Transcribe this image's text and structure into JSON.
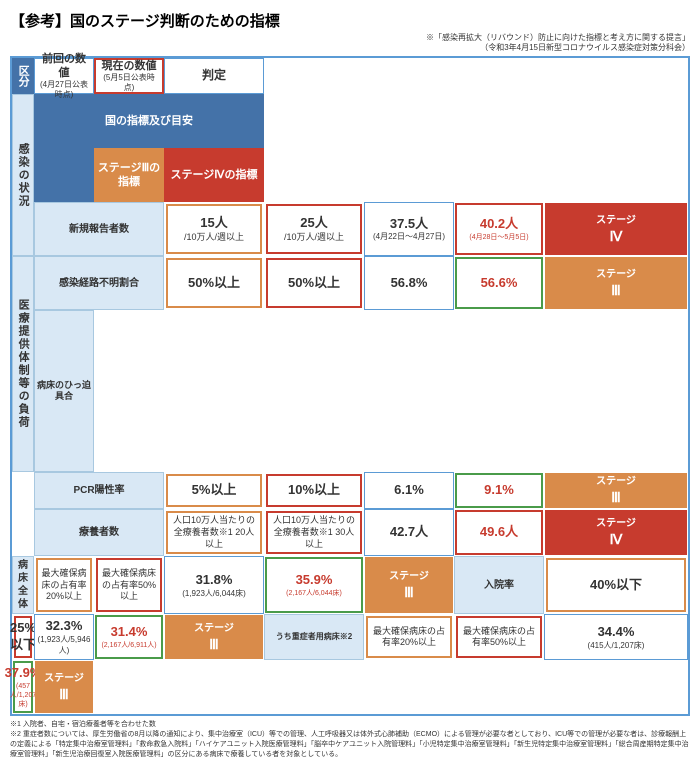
{
  "title": "【参考】国のステージ判断のための指標",
  "subtitle1": "※「感染再拡大（リバウンド）防止に向けた指標と考え方に関する提言」",
  "subtitle2": "（令和3年4月15日新型コロナウイルス感染症対策分科会）",
  "hdr": {
    "cat": "区分",
    "ind": "国の指標及び目安",
    "s3": "ステージⅢの指標",
    "s4": "ステージⅣの指標",
    "prev": "前回の数値",
    "prev_sub": "(4月27日公表時点)",
    "curr": "現在の数値",
    "curr_sub": "(5月5日公表時点)",
    "judge": "判定"
  },
  "cat1": "感染の状況",
  "cat2": "医療提供体制等の負荷",
  "rows": [
    {
      "ind": "新規報告者数",
      "s3": "15人",
      "s3_sub": "/10万人/週以上",
      "s4": "25人",
      "s4_sub": "/10万人/週以上",
      "prev": "37.5人",
      "prev_sub": "(4月22日～4月27日)",
      "curr": "40.2人",
      "curr_sub": "(4月28日～5月5日)",
      "curr_cls": "curr-r",
      "jdg": "ステージⅣ",
      "jdg_cls": "jdg-4"
    },
    {
      "ind": "感染経路不明割合",
      "s3": "50%以上",
      "s4": "50%以上",
      "prev": "56.8%",
      "curr": "56.6%",
      "curr_cls": "curr-o",
      "jdg": "ステージⅢ",
      "jdg_cls": "jdg-3"
    },
    {
      "ind": "PCR陽性率",
      "s3": "5%以上",
      "s4": "10%以上",
      "prev": "6.1%",
      "curr": "9.1%",
      "curr_cls": "curr-o",
      "jdg": "ステージⅢ",
      "jdg_cls": "jdg-3"
    },
    {
      "ind": "療養者数",
      "s3": "人口10万人当たりの全療養者数※1 20人以上",
      "s4": "人口10万人当たりの全療養者数※1 30人以上",
      "prev": "42.7人",
      "curr": "49.6人",
      "curr_cls": "curr-r",
      "jdg": "ステージⅣ",
      "jdg_cls": "jdg-4"
    },
    {
      "ind": "病床全体",
      "s3": "最大確保病床の占有率20%以上",
      "s4": "最大確保病床の占有率50%以上",
      "prev": "31.8%",
      "prev_sub": "(1,923人/6,044床)",
      "curr": "35.9%",
      "curr_sub": "(2,167人/6,044床)",
      "curr_cls": "curr-o",
      "jdg": "ステージⅢ",
      "jdg_cls": "jdg-3"
    },
    {
      "ind": "入院率",
      "s3": "40%以下",
      "s4": "25%以下",
      "prev": "32.3%",
      "prev_sub": "(1,923人/5,946人)",
      "curr": "31.4%",
      "curr_sub": "(2,167人/6,911人)",
      "curr_cls": "curr-o",
      "jdg": "ステージⅢ",
      "jdg_cls": "jdg-3"
    },
    {
      "ind": "うち重症者用病床※2",
      "s3": "最大確保病床の占有率20%以上",
      "s4": "最大確保病床の占有率50%以上",
      "prev": "34.4%",
      "prev_sub": "(415人/1,207床)",
      "curr": "37.9%",
      "curr_sub": "(457人/1,207床)",
      "curr_cls": "curr-o",
      "jdg": "ステージⅢ",
      "jdg_cls": "jdg-3"
    }
  ],
  "bed_group": "病床のひっ迫具合",
  "note1": "※1 入院者、自宅・宿泊療養者等を合わせた数",
  "note2": "※2 重症者数については、厚生労働省の8月以降の通知により、集中治療室（ICU）等での管理、人工呼吸器又は体外式心肺補助（ECMO）による管理が必要な者としており、ICU等での管理が必要な者は、診療報酬上の定義による「特定集中治療室管理料」「救命救急入院料」「ハイケアユニット入院医療管理料」「脳卒中ケアユニット入院管理料」「小児特定集中治療室管理料」「新生児特定集中治療室管理料」「総合周産期特定集中治療室管理料」「新生児治療回復室入院医療管理料」の区分にある病床で療養している者を対象としている。"
}
